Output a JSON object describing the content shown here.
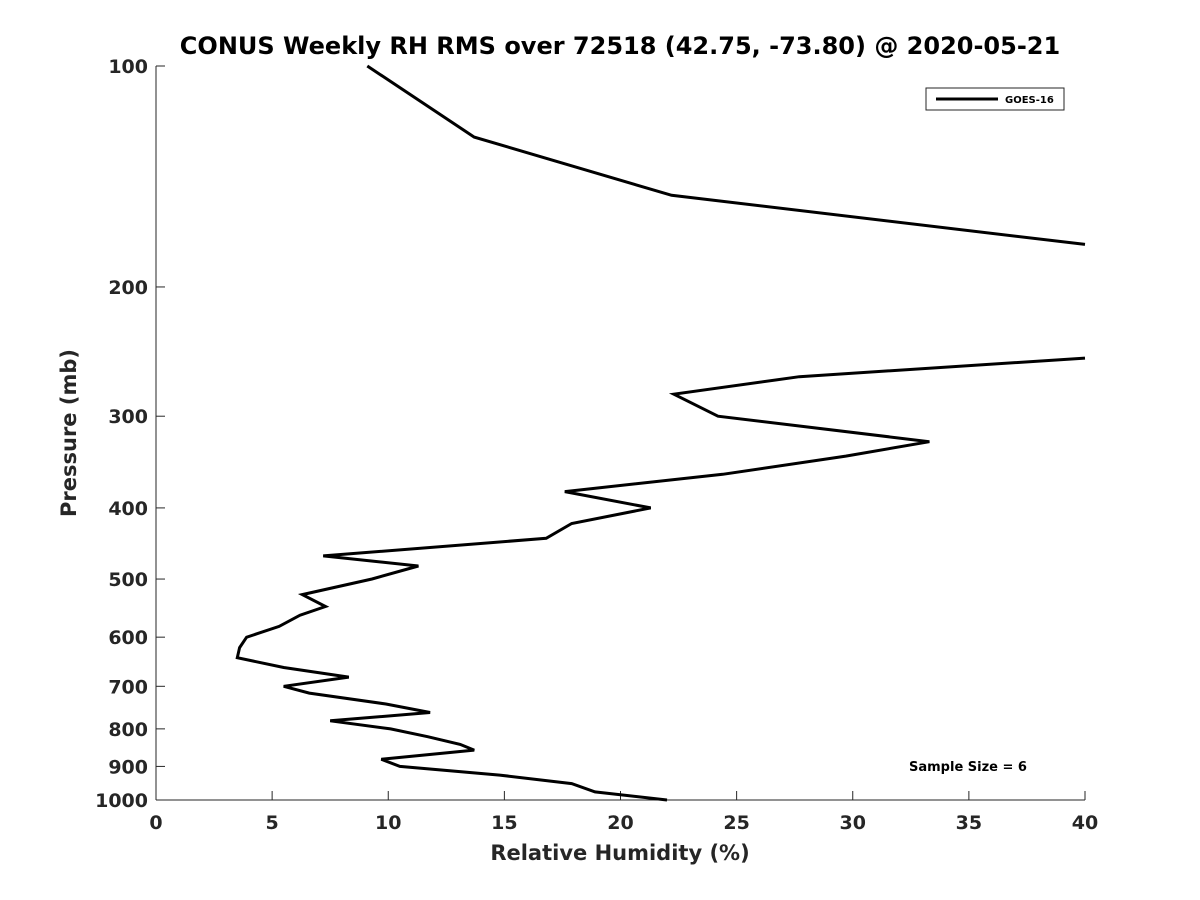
{
  "chart_data": {
    "type": "line",
    "title": "CONUS Weekly RH RMS over 72518 (42.75, -73.80) @ 2020-05-21",
    "xlabel": "Relative Humidity (%)",
    "ylabel": "Pressure (mb)",
    "xlim": [
      0,
      40
    ],
    "ylim": [
      100,
      1000
    ],
    "y_scale": "log",
    "y_reversed": true,
    "x_ticks": [
      "0",
      "5",
      "10",
      "15",
      "20",
      "25",
      "30",
      "35",
      "40"
    ],
    "y_ticks": [
      "100",
      "200",
      "300",
      "400",
      "500",
      "600",
      "700",
      "800",
      "900",
      "1000"
    ],
    "grid": false,
    "legend_position": "top-right",
    "annotation": "Sample Size = 6",
    "series": [
      {
        "name": "GOES-16",
        "color": "#000000",
        "points": [
          {
            "rh": 9.1,
            "p": 100
          },
          {
            "rh": 13.7,
            "p": 125
          },
          {
            "rh": 22.2,
            "p": 150
          },
          {
            "rh": 40,
            "p": 175
          },
          {
            "rh": null,
            "p": 200
          },
          {
            "rh": 40,
            "p": 250
          },
          {
            "rh": 27.7,
            "p": 265
          },
          {
            "rh": 22.3,
            "p": 280
          },
          {
            "rh": 24.2,
            "p": 300
          },
          {
            "rh": 33.3,
            "p": 325
          },
          {
            "rh": 29.7,
            "p": 340
          },
          {
            "rh": 24.4,
            "p": 360
          },
          {
            "rh": 17.6,
            "p": 380
          },
          {
            "rh": 21.3,
            "p": 400
          },
          {
            "rh": 17.9,
            "p": 420
          },
          {
            "rh": 16.8,
            "p": 440
          },
          {
            "rh": 7.2,
            "p": 465
          },
          {
            "rh": 11.3,
            "p": 480
          },
          {
            "rh": 9.3,
            "p": 500
          },
          {
            "rh": 6.3,
            "p": 525
          },
          {
            "rh": 7.3,
            "p": 545
          },
          {
            "rh": 6.2,
            "p": 560
          },
          {
            "rh": 5.3,
            "p": 580
          },
          {
            "rh": 3.9,
            "p": 600
          },
          {
            "rh": 3.6,
            "p": 620
          },
          {
            "rh": 3.5,
            "p": 640
          },
          {
            "rh": 5.5,
            "p": 660
          },
          {
            "rh": 8.3,
            "p": 680
          },
          {
            "rh": 5.5,
            "p": 700
          },
          {
            "rh": 6.6,
            "p": 715
          },
          {
            "rh": 9.9,
            "p": 740
          },
          {
            "rh": 11.8,
            "p": 760
          },
          {
            "rh": 7.5,
            "p": 780
          },
          {
            "rh": 10.1,
            "p": 800
          },
          {
            "rh": 11.7,
            "p": 820
          },
          {
            "rh": 13.1,
            "p": 840
          },
          {
            "rh": 13.7,
            "p": 855
          },
          {
            "rh": 9.7,
            "p": 880
          },
          {
            "rh": 10.5,
            "p": 900
          },
          {
            "rh": 14.8,
            "p": 925
          },
          {
            "rh": 17.9,
            "p": 950
          },
          {
            "rh": 18.9,
            "p": 975
          },
          {
            "rh": 22.0,
            "p": 1000
          }
        ]
      }
    ]
  }
}
